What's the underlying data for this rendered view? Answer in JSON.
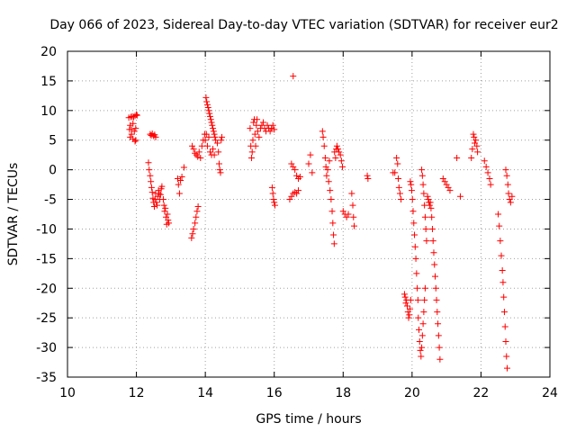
{
  "chart_data": {
    "type": "scatter",
    "title": "Day 066 of 2023, Sidereal Day-to-day VTEC variation (SDTVAR) for receiver eur2",
    "xlabel": "GPS time / hours",
    "ylabel": "SDTVAR / TECUs",
    "xlim": [
      10,
      24
    ],
    "ylim": [
      -35,
      20
    ],
    "xticks": [
      "10",
      "12",
      "14",
      "16",
      "18",
      "20",
      "22",
      "24"
    ],
    "yticks": [
      "20",
      "15",
      "10",
      "5",
      "0",
      "-5",
      "-10",
      "-15",
      "-20",
      "-25",
      "-30",
      "-35"
    ],
    "grid": true,
    "marker": "+",
    "color": "#ff0000",
    "series": [
      {
        "name": "sdtvar",
        "points": [
          [
            11.78,
            8.8
          ],
          [
            11.8,
            6.8
          ],
          [
            11.82,
            7.5
          ],
          [
            11.84,
            8.9
          ],
          [
            11.86,
            6.0
          ],
          [
            11.88,
            9.0
          ],
          [
            11.9,
            5.2
          ],
          [
            11.92,
            8.9
          ],
          [
            11.94,
            6.5
          ],
          [
            11.96,
            9.1
          ],
          [
            11.98,
            5.0
          ],
          [
            12.0,
            9.3
          ],
          [
            11.82,
            5.5
          ],
          [
            11.86,
            6.8
          ],
          [
            11.9,
            7.8
          ],
          [
            11.96,
            4.8
          ],
          [
            12.02,
            9.2
          ],
          [
            11.98,
            7.0
          ],
          [
            12.35,
            1.2
          ],
          [
            12.37,
            0.0
          ],
          [
            12.4,
            -1.0
          ],
          [
            12.42,
            -2.0
          ],
          [
            12.44,
            -3.0
          ],
          [
            12.46,
            -3.8
          ],
          [
            12.48,
            -4.8
          ],
          [
            12.5,
            -5.5
          ],
          [
            12.52,
            -6.2
          ],
          [
            12.54,
            -5.0
          ],
          [
            12.56,
            -4.0
          ],
          [
            12.58,
            -5.5
          ],
          [
            12.6,
            -6.0
          ],
          [
            12.62,
            -4.5
          ],
          [
            12.64,
            -3.5
          ],
          [
            12.66,
            -4.0
          ],
          [
            12.68,
            -5.0
          ],
          [
            12.7,
            -4.2
          ],
          [
            12.72,
            -3.2
          ],
          [
            12.74,
            -2.8
          ],
          [
            12.4,
            6.0
          ],
          [
            12.43,
            5.8
          ],
          [
            12.46,
            6.1
          ],
          [
            12.5,
            5.7
          ],
          [
            12.53,
            5.9
          ],
          [
            12.56,
            5.5
          ],
          [
            12.78,
            -5.0
          ],
          [
            12.8,
            -6.0
          ],
          [
            12.82,
            -7.0
          ],
          [
            12.84,
            -6.5
          ],
          [
            12.86,
            -8.0
          ],
          [
            12.88,
            -9.2
          ],
          [
            12.9,
            -7.5
          ],
          [
            12.92,
            -8.5
          ],
          [
            12.94,
            -9.0
          ],
          [
            13.2,
            -1.5
          ],
          [
            13.22,
            -2.5
          ],
          [
            13.25,
            -4.0
          ],
          [
            13.28,
            -1.8
          ],
          [
            13.32,
            -1.2
          ],
          [
            13.38,
            0.4
          ],
          [
            13.6,
            -11.5
          ],
          [
            13.63,
            -10.8
          ],
          [
            13.66,
            -10.0
          ],
          [
            13.7,
            -9.0
          ],
          [
            13.73,
            -8.0
          ],
          [
            13.76,
            -7.0
          ],
          [
            13.79,
            -6.2
          ],
          [
            13.62,
            4.0
          ],
          [
            13.66,
            3.5
          ],
          [
            13.7,
            2.8
          ],
          [
            13.74,
            2.5
          ],
          [
            13.78,
            2.2
          ],
          [
            13.82,
            3.0
          ],
          [
            13.86,
            2.0
          ],
          [
            13.9,
            4.0
          ],
          [
            13.94,
            5.0
          ],
          [
            13.98,
            6.0
          ],
          [
            14.02,
            12.2
          ],
          [
            14.04,
            11.5
          ],
          [
            14.06,
            11.0
          ],
          [
            14.08,
            10.5
          ],
          [
            14.1,
            10.0
          ],
          [
            14.12,
            9.5
          ],
          [
            14.14,
            9.0
          ],
          [
            14.16,
            8.5
          ],
          [
            14.18,
            8.0
          ],
          [
            14.2,
            7.5
          ],
          [
            14.22,
            7.0
          ],
          [
            14.24,
            6.5
          ],
          [
            14.26,
            6.0
          ],
          [
            14.28,
            5.5
          ],
          [
            14.3,
            5.0
          ],
          [
            14.0,
            5.0
          ],
          [
            14.03,
            6.0
          ],
          [
            14.06,
            4.0
          ],
          [
            14.1,
            5.5
          ],
          [
            14.14,
            3.0
          ],
          [
            14.18,
            2.5
          ],
          [
            14.22,
            3.5
          ],
          [
            14.26,
            2.5
          ],
          [
            14.35,
            4.5
          ],
          [
            14.38,
            3.0
          ],
          [
            14.4,
            1.0
          ],
          [
            14.42,
            0.0
          ],
          [
            14.44,
            -0.5
          ],
          [
            14.46,
            5.0
          ],
          [
            14.48,
            5.5
          ],
          [
            15.3,
            7.0
          ],
          [
            15.32,
            4.0
          ],
          [
            15.34,
            2.0
          ],
          [
            15.36,
            3.0
          ],
          [
            15.38,
            5.0
          ],
          [
            15.4,
            8.0
          ],
          [
            15.42,
            8.5
          ],
          [
            15.44,
            6.0
          ],
          [
            15.46,
            4.0
          ],
          [
            15.48,
            7.5
          ],
          [
            15.5,
            8.5
          ],
          [
            15.52,
            6.5
          ],
          [
            15.56,
            5.5
          ],
          [
            15.6,
            7.0
          ],
          [
            15.64,
            7.5
          ],
          [
            15.68,
            8.0
          ],
          [
            15.72,
            7.0
          ],
          [
            15.76,
            6.5
          ],
          [
            15.8,
            7.5
          ],
          [
            15.84,
            7.0
          ],
          [
            15.88,
            6.5
          ],
          [
            15.92,
            7.0
          ],
          [
            15.96,
            7.5
          ],
          [
            16.0,
            6.8
          ],
          [
            15.94,
            -3.0
          ],
          [
            15.96,
            -4.0
          ],
          [
            15.98,
            -5.0
          ],
          [
            16.0,
            -5.5
          ],
          [
            16.02,
            -6.0
          ],
          [
            16.55,
            15.8
          ],
          [
            16.45,
            -5.0
          ],
          [
            16.5,
            -4.5
          ],
          [
            16.55,
            -4.0
          ],
          [
            16.6,
            -3.8
          ],
          [
            16.65,
            -4.0
          ],
          [
            16.7,
            -3.5
          ],
          [
            16.5,
            1.0
          ],
          [
            16.55,
            0.5
          ],
          [
            16.6,
            0.0
          ],
          [
            16.65,
            -1.0
          ],
          [
            16.7,
            -1.5
          ],
          [
            16.75,
            -1.2
          ],
          [
            17.0,
            1.0
          ],
          [
            17.05,
            2.5
          ],
          [
            17.1,
            -0.5
          ],
          [
            17.4,
            6.5
          ],
          [
            17.42,
            5.5
          ],
          [
            17.45,
            4.0
          ],
          [
            17.48,
            2.0
          ],
          [
            17.5,
            0.5
          ],
          [
            17.52,
            -1.0
          ],
          [
            17.55,
            0.0
          ],
          [
            17.58,
            -2.0
          ],
          [
            17.6,
            1.5
          ],
          [
            17.62,
            -3.5
          ],
          [
            17.65,
            -5.0
          ],
          [
            17.68,
            -7.0
          ],
          [
            17.7,
            -9.0
          ],
          [
            17.72,
            -11.0
          ],
          [
            17.74,
            -12.5
          ],
          [
            17.75,
            3.0
          ],
          [
            17.78,
            2.0
          ],
          [
            17.8,
            3.5
          ],
          [
            17.82,
            4.0
          ],
          [
            17.85,
            3.5
          ],
          [
            17.88,
            3.0
          ],
          [
            17.92,
            2.5
          ],
          [
            17.95,
            1.5
          ],
          [
            17.98,
            0.5
          ],
          [
            18.0,
            -7.0
          ],
          [
            18.05,
            -7.5
          ],
          [
            18.1,
            -8.0
          ],
          [
            18.15,
            -7.5
          ],
          [
            18.25,
            -4.0
          ],
          [
            18.28,
            -6.0
          ],
          [
            18.3,
            -8.0
          ],
          [
            18.32,
            -9.5
          ],
          [
            18.7,
            -1.0
          ],
          [
            18.72,
            -1.5
          ],
          [
            19.45,
            -0.5
          ],
          [
            19.5,
            -0.5
          ],
          [
            19.55,
            2.0
          ],
          [
            19.58,
            1.0
          ],
          [
            19.6,
            -1.5
          ],
          [
            19.62,
            -3.0
          ],
          [
            19.65,
            -4.0
          ],
          [
            19.68,
            -5.0
          ],
          [
            19.78,
            -21.0
          ],
          [
            19.8,
            -21.5
          ],
          [
            19.82,
            -22.5
          ],
          [
            19.84,
            -22.0
          ],
          [
            19.86,
            -23.0
          ],
          [
            19.88,
            -24.0
          ],
          [
            19.9,
            -25.0
          ],
          [
            19.92,
            -24.5
          ],
          [
            19.94,
            -23.5
          ],
          [
            19.96,
            -22.0
          ],
          [
            19.95,
            -2.0
          ],
          [
            19.97,
            -2.5
          ],
          [
            19.99,
            -3.5
          ],
          [
            20.01,
            -5.0
          ],
          [
            20.03,
            -7.0
          ],
          [
            20.05,
            -9.0
          ],
          [
            20.07,
            -11.0
          ],
          [
            20.09,
            -13.0
          ],
          [
            20.11,
            -15.0
          ],
          [
            20.13,
            -17.5
          ],
          [
            20.15,
            -20.0
          ],
          [
            20.17,
            -22.0
          ],
          [
            20.18,
            -25.0
          ],
          [
            20.2,
            -27.0
          ],
          [
            20.22,
            -29.0
          ],
          [
            20.24,
            -30.5
          ],
          [
            20.26,
            -31.5
          ],
          [
            20.28,
            -30.0
          ],
          [
            20.3,
            -28.0
          ],
          [
            20.32,
            -26.0
          ],
          [
            20.34,
            -24.0
          ],
          [
            20.36,
            -22.0
          ],
          [
            20.38,
            -20.0
          ],
          [
            20.28,
            0.0
          ],
          [
            20.3,
            -1.0
          ],
          [
            20.32,
            -2.5
          ],
          [
            20.34,
            -4.0
          ],
          [
            20.36,
            -6.0
          ],
          [
            20.38,
            -8.0
          ],
          [
            20.4,
            -10.0
          ],
          [
            20.42,
            -12.0
          ],
          [
            20.45,
            -4.5
          ],
          [
            20.47,
            -5.0
          ],
          [
            20.49,
            -5.5
          ],
          [
            20.51,
            -6.0
          ],
          [
            20.53,
            -5.5
          ],
          [
            20.55,
            -6.5
          ],
          [
            20.57,
            -8.0
          ],
          [
            20.59,
            -10.0
          ],
          [
            20.61,
            -12.0
          ],
          [
            20.63,
            -14.0
          ],
          [
            20.65,
            -16.0
          ],
          [
            20.67,
            -18.0
          ],
          [
            20.69,
            -20.0
          ],
          [
            20.71,
            -22.0
          ],
          [
            20.73,
            -24.0
          ],
          [
            20.75,
            -26.0
          ],
          [
            20.77,
            -28.0
          ],
          [
            20.79,
            -30.0
          ],
          [
            20.81,
            -32.0
          ],
          [
            20.9,
            -1.5
          ],
          [
            20.95,
            -2.0
          ],
          [
            21.0,
            -2.5
          ],
          [
            21.05,
            -3.0
          ],
          [
            21.1,
            -3.5
          ],
          [
            21.3,
            2.0
          ],
          [
            21.4,
            -4.5
          ],
          [
            21.72,
            2.0
          ],
          [
            21.75,
            3.5
          ],
          [
            21.78,
            6.0
          ],
          [
            21.8,
            5.5
          ],
          [
            21.82,
            4.5
          ],
          [
            21.85,
            5.0
          ],
          [
            21.88,
            4.0
          ],
          [
            21.9,
            3.0
          ],
          [
            22.1,
            1.5
          ],
          [
            22.15,
            0.5
          ],
          [
            22.2,
            -0.5
          ],
          [
            22.25,
            -1.5
          ],
          [
            22.28,
            -2.5
          ],
          [
            22.5,
            -7.5
          ],
          [
            22.53,
            -9.5
          ],
          [
            22.56,
            -12.0
          ],
          [
            22.59,
            -14.5
          ],
          [
            22.62,
            -17.0
          ],
          [
            22.64,
            -19.0
          ],
          [
            22.66,
            -21.5
          ],
          [
            22.68,
            -24.0
          ],
          [
            22.7,
            -26.5
          ],
          [
            22.72,
            -29.0
          ],
          [
            22.74,
            -31.5
          ],
          [
            22.76,
            -33.5
          ],
          [
            22.72,
            0.0
          ],
          [
            22.75,
            -1.0
          ],
          [
            22.78,
            -2.5
          ],
          [
            22.8,
            -4.0
          ],
          [
            22.83,
            -5.0
          ],
          [
            22.86,
            -5.5
          ],
          [
            22.9,
            -4.5
          ]
        ]
      }
    ]
  }
}
